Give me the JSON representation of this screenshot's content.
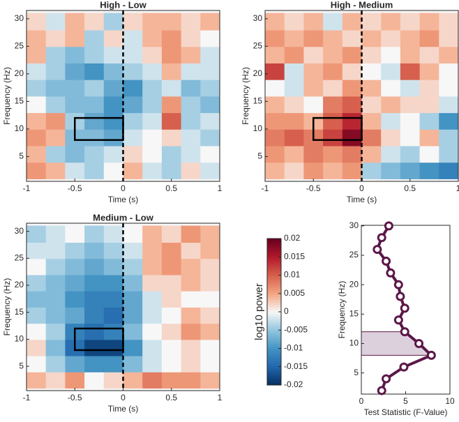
{
  "chart_data": [
    {
      "type": "heatmap",
      "title": "High - Low",
      "xlabel": "Time (s)",
      "ylabel": "Frequency (Hz)",
      "xlim": [
        -1,
        1
      ],
      "ylim": [
        0.5,
        31.5
      ],
      "xticks": [
        -1,
        -0.5,
        0,
        0.5,
        1
      ],
      "yticks": [
        5,
        10,
        15,
        20,
        25,
        30
      ],
      "x": [
        -0.9,
        -0.7,
        -0.5,
        -0.3,
        -0.1,
        0.1,
        0.3,
        0.5,
        0.7,
        0.9
      ],
      "y": [
        2.5,
        5.5,
        8.5,
        11.5,
        14.5,
        17.5,
        20.5,
        23.5,
        26.5,
        29.5
      ],
      "z": [
        [
          0.006,
          0.004,
          -0.002,
          -0.004,
          0.0,
          0.004,
          -0.002,
          -0.004,
          0.002,
          -0.002
        ],
        [
          0.004,
          -0.004,
          -0.006,
          -0.004,
          -0.002,
          0.002,
          0.0,
          -0.004,
          -0.002,
          0.0
        ],
        [
          0.006,
          0.004,
          -0.006,
          -0.006,
          -0.008,
          -0.002,
          0.0,
          0.002,
          -0.002,
          -0.004
        ],
        [
          0.004,
          0.006,
          -0.004,
          -0.008,
          -0.01,
          -0.004,
          -0.002,
          0.01,
          -0.004,
          -0.002
        ],
        [
          0.0,
          -0.004,
          -0.006,
          -0.006,
          -0.01,
          -0.008,
          -0.004,
          0.006,
          -0.004,
          -0.006
        ],
        [
          -0.004,
          -0.006,
          -0.006,
          -0.004,
          -0.008,
          -0.01,
          -0.004,
          -0.002,
          -0.006,
          -0.004
        ],
        [
          -0.002,
          -0.004,
          -0.008,
          -0.01,
          -0.006,
          -0.004,
          -0.002,
          0.004,
          -0.002,
          -0.002
        ],
        [
          0.004,
          -0.004,
          -0.006,
          -0.004,
          -0.002,
          -0.002,
          0.002,
          0.006,
          0.004,
          -0.002
        ],
        [
          0.004,
          0.002,
          0.004,
          -0.004,
          0.002,
          -0.002,
          0.004,
          0.006,
          0.002,
          0.0
        ],
        [
          0.002,
          -0.002,
          0.004,
          0.002,
          -0.004,
          0.002,
          0.004,
          0.004,
          0.002,
          0.004
        ]
      ],
      "box": {
        "x": [
          -0.5,
          0
        ],
        "y": [
          8,
          12
        ]
      },
      "vline": 0
    },
    {
      "type": "heatmap",
      "title": "High - Medium",
      "xlabel": "Time (s)",
      "ylabel": "Frequency (Hz)",
      "xlim": [
        -1,
        1
      ],
      "ylim": [
        0.5,
        31.5
      ],
      "xticks": [
        -1,
        -0.5,
        0,
        0.5,
        1
      ],
      "yticks": [
        5,
        10,
        15,
        20,
        25,
        30
      ],
      "x": [
        -0.9,
        -0.7,
        -0.5,
        -0.3,
        -0.1,
        0.1,
        0.3,
        0.5,
        0.7,
        0.9
      ],
      "y": [
        2.5,
        5.5,
        8.5,
        11.5,
        14.5,
        17.5,
        20.5,
        23.5,
        26.5,
        29.5
      ],
      "z": [
        [
          0.004,
          0.002,
          0.006,
          0.004,
          0.006,
          -0.004,
          -0.006,
          -0.008,
          -0.01,
          -0.012
        ],
        [
          0.006,
          0.004,
          0.008,
          0.006,
          0.008,
          0.004,
          -0.002,
          -0.004,
          0.0,
          -0.004
        ],
        [
          0.008,
          0.01,
          0.008,
          0.012,
          0.018,
          0.008,
          0.002,
          0.0,
          0.004,
          -0.004
        ],
        [
          0.006,
          0.006,
          0.004,
          0.01,
          0.014,
          0.004,
          -0.002,
          0.0,
          -0.004,
          -0.01
        ],
        [
          0.004,
          0.002,
          0.0,
          0.008,
          0.01,
          0.002,
          0.004,
          0.002,
          0.002,
          -0.002
        ],
        [
          0.0,
          -0.002,
          0.004,
          0.002,
          0.006,
          0.004,
          0.0,
          -0.002,
          0.002,
          0.0
        ],
        [
          0.012,
          -0.002,
          0.004,
          0.006,
          0.002,
          0.0,
          -0.002,
          0.01,
          0.004,
          0.0
        ],
        [
          0.004,
          0.006,
          0.002,
          0.004,
          0.006,
          0.002,
          0.0,
          0.004,
          0.002,
          0.004
        ],
        [
          0.006,
          0.004,
          0.006,
          0.004,
          0.002,
          0.004,
          0.002,
          0.004,
          0.006,
          0.002
        ],
        [
          0.004,
          0.002,
          0.004,
          -0.002,
          0.004,
          0.002,
          0.004,
          0.002,
          0.004,
          0.002
        ]
      ],
      "box": {
        "x": [
          -0.5,
          0
        ],
        "y": [
          8,
          12
        ]
      },
      "vline": 0
    },
    {
      "type": "heatmap",
      "title": "Medium - Low",
      "xlabel": "Time (s)",
      "ylabel": "Frequency (Hz)",
      "xlim": [
        -1,
        1
      ],
      "ylim": [
        0.5,
        31.5
      ],
      "xticks": [
        -1,
        -0.5,
        0,
        0.5,
        1
      ],
      "yticks": [
        5,
        10,
        15,
        20,
        25,
        30
      ],
      "x": [
        -0.9,
        -0.7,
        -0.5,
        -0.3,
        -0.1,
        0.1,
        0.3,
        0.5,
        0.7,
        0.9
      ],
      "y": [
        2.5,
        5.5,
        8.5,
        11.5,
        14.5,
        17.5,
        20.5,
        23.5,
        26.5,
        29.5
      ],
      "z": [
        [
          0.004,
          0.002,
          0.006,
          0.0,
          0.002,
          0.004,
          0.008,
          0.006,
          0.006,
          0.004
        ],
        [
          0.0,
          -0.004,
          -0.008,
          -0.01,
          -0.01,
          -0.006,
          -0.002,
          0.0,
          0.002,
          0.0
        ],
        [
          0.002,
          -0.006,
          -0.014,
          -0.018,
          -0.018,
          -0.01,
          -0.002,
          0.0,
          0.002,
          0.0
        ],
        [
          0.0,
          -0.004,
          -0.012,
          -0.014,
          -0.012,
          -0.006,
          0.0,
          0.002,
          0.006,
          0.004
        ],
        [
          -0.004,
          -0.006,
          -0.008,
          -0.012,
          -0.014,
          -0.008,
          -0.002,
          0.0,
          0.004,
          0.002
        ],
        [
          -0.006,
          -0.006,
          -0.01,
          -0.012,
          -0.012,
          -0.008,
          -0.002,
          0.002,
          0.0,
          0.0
        ],
        [
          -0.004,
          -0.006,
          -0.008,
          -0.01,
          -0.01,
          -0.006,
          0.002,
          0.002,
          0.004,
          0.002
        ],
        [
          0.0,
          -0.004,
          -0.006,
          -0.008,
          -0.006,
          -0.004,
          0.004,
          0.006,
          0.004,
          0.002
        ],
        [
          -0.002,
          -0.002,
          -0.004,
          -0.006,
          -0.004,
          -0.002,
          0.004,
          0.006,
          0.002,
          0.004
        ],
        [
          -0.004,
          -0.002,
          0.0,
          -0.004,
          -0.002,
          0.0,
          0.004,
          0.002,
          0.006,
          0.004
        ]
      ],
      "box": {
        "x": [
          -0.5,
          0
        ],
        "y": [
          8,
          12
        ]
      },
      "vline": 0
    },
    {
      "type": "colorbar",
      "label": "log10 power",
      "lim": [
        -0.02,
        0.02
      ],
      "ticks": [
        -0.02,
        -0.015,
        -0.01,
        -0.005,
        0,
        0.005,
        0.01,
        0.015,
        0.02
      ],
      "colormap": [
        "#053061",
        "#2166ac",
        "#4393c3",
        "#92c5de",
        "#f7f7f7",
        "#f4a582",
        "#d6604d",
        "#b2182b",
        "#67001f"
      ]
    },
    {
      "type": "line",
      "orientation": "horizontal",
      "xlabel": "Test Statistic (F-Value)",
      "ylabel": "Frequency (Hz)",
      "xlim": [
        0,
        10
      ],
      "ylim": [
        1.4,
        30.1
      ],
      "xticks": [
        0,
        5,
        10
      ],
      "yticks": [
        5,
        10,
        15,
        20,
        25,
        30
      ],
      "y": [
        2,
        4,
        6,
        8,
        10,
        12,
        14,
        16,
        18,
        20,
        22,
        24,
        26,
        28,
        30
      ],
      "values": [
        2.3,
        2.8,
        4.8,
        7.9,
        6.5,
        4.9,
        4.2,
        4.9,
        4.4,
        4.2,
        3.3,
        2.8,
        1.8,
        2.3,
        3.1
      ],
      "color": "#5b1748",
      "band": [
        8,
        12
      ],
      "band_color": "#ddd0dd"
    }
  ]
}
